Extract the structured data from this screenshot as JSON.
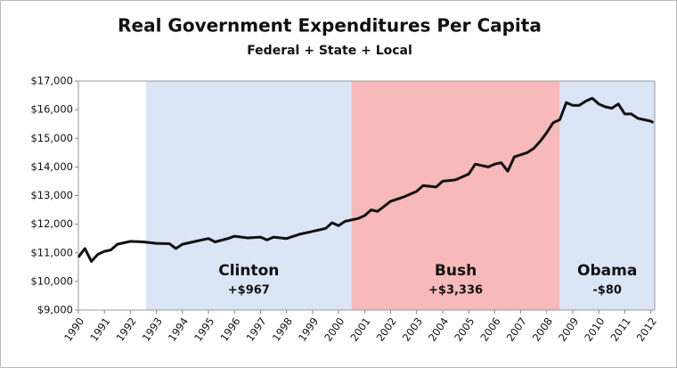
{
  "chart_data": {
    "type": "line",
    "title": "Real Government Expenditures Per Capita",
    "subtitle": "Federal + State + Local",
    "color": "#111111",
    "x": [
      1990.0,
      1990.25,
      1990.5,
      1990.75,
      1991.0,
      1991.25,
      1991.5,
      1991.75,
      1992.0,
      1992.5,
      1993.0,
      1993.5,
      1993.75,
      1994.0,
      1994.5,
      1995.0,
      1995.25,
      1995.75,
      1996.0,
      1996.5,
      1997.0,
      1997.25,
      1997.5,
      1998.0,
      1998.5,
      1999.0,
      1999.5,
      1999.75,
      2000.0,
      2000.25,
      2000.75,
      2001.0,
      2001.25,
      2001.5,
      2002.0,
      2002.5,
      2003.0,
      2003.25,
      2003.75,
      2004.0,
      2004.5,
      2005.0,
      2005.25,
      2005.75,
      2006.0,
      2006.25,
      2006.5,
      2006.75,
      2007.25,
      2007.5,
      2007.75,
      2008.0,
      2008.25,
      2008.5,
      2008.75,
      2009.0,
      2009.25,
      2009.5,
      2009.75,
      2010.0,
      2010.25,
      2010.5,
      2010.75,
      2011.0,
      2011.25,
      2011.5,
      2011.75,
      2012.0,
      2012.1
    ],
    "values": [
      10850,
      11150,
      10700,
      10950,
      11050,
      11100,
      11300,
      11350,
      11400,
      11380,
      11330,
      11320,
      11150,
      11300,
      11400,
      11500,
      11380,
      11500,
      11580,
      11520,
      11550,
      11450,
      11550,
      11500,
      11650,
      11750,
      11850,
      12050,
      11950,
      12100,
      12200,
      12300,
      12500,
      12450,
      12800,
      12950,
      13150,
      13350,
      13300,
      13500,
      13550,
      13750,
      14100,
      14000,
      14100,
      14150,
      13850,
      14350,
      14500,
      14650,
      14900,
      15200,
      15550,
      15650,
      16250,
      16150,
      16150,
      16300,
      16400,
      16200,
      16100,
      16050,
      16200,
      15850,
      15850,
      15700,
      15650,
      15600,
      15550
    ],
    "xlim": [
      1990,
      2012.15
    ],
    "xticks": [
      1990,
      1991,
      1992,
      1993,
      1994,
      1995,
      1996,
      1997,
      1998,
      1999,
      2000,
      2001,
      2002,
      2003,
      2004,
      2005,
      2006,
      2007,
      2008,
      2009,
      2010,
      2011,
      2012
    ],
    "ylim": [
      9000,
      17000
    ],
    "yticks": [
      {
        "value": 9000,
        "label": "$9,000"
      },
      {
        "value": 10000,
        "label": "$10,000"
      },
      {
        "value": 11000,
        "label": "$11,000"
      },
      {
        "value": 12000,
        "label": "$12,000"
      },
      {
        "value": 13000,
        "label": "$13,000"
      },
      {
        "value": 14000,
        "label": "$14,000"
      },
      {
        "value": 15000,
        "label": "$15,000"
      },
      {
        "value": 16000,
        "label": "$16,000"
      },
      {
        "value": 17000,
        "label": "$17,000"
      }
    ],
    "regions": [
      {
        "name": "Clinton",
        "change": "+$967",
        "start": 1992.6,
        "end": 2000.5,
        "color": "#dae5f5"
      },
      {
        "name": "Bush",
        "change": "+$3,336",
        "start": 2000.5,
        "end": 2008.5,
        "color": "#f7b9b9"
      },
      {
        "name": "Obama",
        "change": "-$80",
        "start": 2008.5,
        "end": 2012.15,
        "color": "#dae5f5"
      }
    ]
  }
}
